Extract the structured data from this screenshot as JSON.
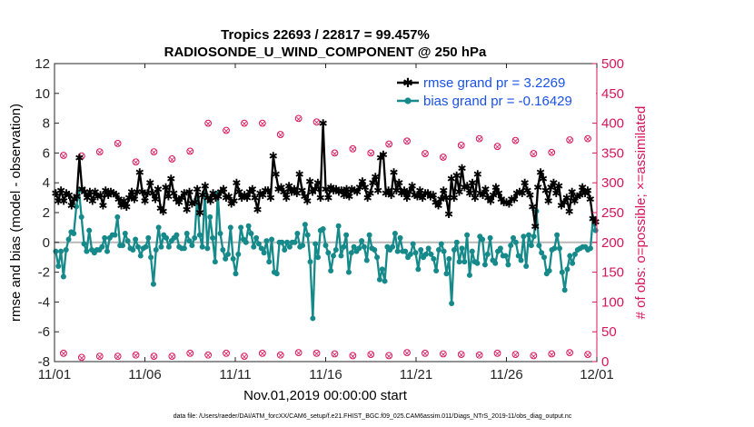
{
  "chart_data": {
    "type": "line",
    "title": "Tropics 22693 / 22817 = 99.457%",
    "subtitle": "RADIOSONDE_U_WIND_COMPONENT @ 250 hPa",
    "xlabel": "Nov.01,2019 00:00:00 start",
    "ylabel_left": "rmse and bias (model - observation)",
    "ylabel_right": "# of obs: o=possible; ×=assimilated",
    "footnote": "data file: /Users/raeder/DAI/ATM_forcXX/CAM6_setup/f.e21.FHIST_BGC.f09_025.CAM6assim.011/Diags_NTrS_2019-11/obs_diag_output.nc",
    "x_tick_labels": [
      "11/01",
      "11/06",
      "11/11",
      "11/16",
      "11/21",
      "11/26",
      "12/01"
    ],
    "x_tick_positions_days": [
      0,
      5,
      10,
      15,
      20,
      25,
      30
    ],
    "xlim_days": [
      0,
      30
    ],
    "ylim_left": [
      -8,
      12
    ],
    "y_ticks_left": [
      "-8",
      "-6",
      "-4",
      "-2",
      "0",
      "2",
      "4",
      "6",
      "8",
      "10",
      "12"
    ],
    "ylim_right": [
      0,
      500
    ],
    "y_ticks_right": [
      "0",
      "50",
      "100",
      "150",
      "200",
      "250",
      "300",
      "350",
      "400",
      "450",
      "500"
    ],
    "colors": {
      "rmse": "#000000",
      "bias": "#168a8a",
      "obs": "#d8155a",
      "zero_line": "#b8b8b8",
      "legend_text": "#1a52e6"
    },
    "legend": [
      {
        "label": "rmse grand pr = 3.2269",
        "series": "rmse"
      },
      {
        "label": "bias grand pr = -0.16429",
        "series": "bias"
      }
    ],
    "series": [
      {
        "name": "rmse",
        "values": [
          3.3,
          2.8,
          3.5,
          2.8,
          3.3,
          3.2,
          2.5,
          2.9,
          3.1,
          5.7,
          3.6,
          3.4,
          3.0,
          3.4,
          2.8,
          3.4,
          3.1,
          3.2,
          2.5,
          3.5,
          3.2,
          3.4,
          3.3,
          3.2,
          2.9,
          2.5,
          2.8,
          2.4,
          3.0,
          3.4,
          2.9,
          3.4,
          4.7,
          3.4,
          2.8,
          3.3,
          4.0,
          3.3,
          2.9,
          3.6,
          2.3,
          2.1,
          3.7,
          3.1,
          4.3,
          3.3,
          2.9,
          2.7,
          3.0,
          3.3,
          2.2,
          3.4,
          2.6,
          2.7,
          3.6,
          2.0,
          3.2,
          3.8,
          3.0,
          2.8,
          3.3,
          3.0,
          3.1,
          3.4,
          3.6,
          3.0,
          3.1,
          2.6,
          2.8,
          4.0,
          3.4,
          3.0,
          3.2,
          3.0,
          3.4,
          3.6,
          3.0,
          2.2,
          3.3,
          3.2,
          3.5,
          3.5,
          3.0,
          5.8,
          4.6,
          3.6,
          3.7,
          3.4,
          3.0,
          3.8,
          3.4,
          3.6,
          3.3,
          4.6,
          3.5,
          3.1,
          2.8,
          4.1,
          3.4,
          3.6,
          4.0,
          3.0,
          8.0,
          3.6,
          3.0,
          3.7,
          3.5,
          3.6,
          3.4,
          3.5,
          3.2,
          3.6,
          3.1,
          3.6,
          3.5,
          3.4,
          3.7,
          4.1,
          3.7,
          3.0,
          3.3,
          4.0,
          4.4,
          3.5,
          5.7,
          5.9,
          3.3,
          3.5,
          3.2,
          4.7,
          3.5,
          4.0,
          3.3,
          3.5,
          3.0,
          3.4,
          3.8,
          3.2,
          3.1,
          3.5,
          3.0,
          3.3,
          3.3,
          3.1,
          3.2,
          2.7,
          2.5,
          2.9,
          3.5,
          3.0,
          1.9,
          4.3,
          3.0,
          4.5,
          3.4,
          5.0,
          3.7,
          3.8,
          3.3,
          4.0,
          3.0,
          4.6,
          3.3,
          3.2,
          3.6,
          3.0,
          2.8,
          3.2,
          3.7,
          3.3,
          2.9,
          2.7,
          2.7,
          2.6,
          2.9,
          2.9,
          3.3,
          3.4,
          3.3,
          4.0,
          3.5,
          3.2,
          2.4,
          1.1,
          3.7,
          4.7,
          4.3,
          3.5,
          2.8,
          3.7,
          4.0,
          3.3,
          3.8,
          2.5,
          2.7,
          3.0,
          2.1,
          3.4,
          2.8,
          3.1,
          3.2,
          3.7,
          3.3,
          3.5,
          2.9,
          1.6,
          1.4
        ]
      },
      {
        "name": "bias",
        "values": [
          -0.6,
          -1.6,
          -0.6,
          -2.3,
          -0.5,
          0.2,
          0.7,
          0.6,
          2.4,
          3.5,
          1.7,
          -0.1,
          -0.6,
          0.8,
          -0.5,
          -0.7,
          -0.5,
          -0.5,
          -0.3,
          0.3,
          -0.6,
          0.3,
          0.5,
          0.5,
          1.7,
          -0.2,
          -0.2,
          0.6,
          0.1,
          -0.4,
          -0.5,
          0.2,
          -0.3,
          -0.9,
          -0.4,
          -0.3,
          0.3,
          -1.0,
          -2.8,
          -0.5,
          1.0,
          -0.3,
          0.5,
          0.3,
          -0.3,
          0.1,
          0.3,
          0.5,
          -0.3,
          -0.4,
          -0.4,
          0.6,
          0.1,
          -0.2,
          0.3,
          3.0,
          0.5,
          -0.3,
          3.3,
          -0.4,
          1.7,
          0.3,
          -1.3,
          3.3,
          0.6,
          -0.5,
          -1.1,
          -0.8,
          1.0,
          -1.1,
          -2.1,
          -0.8,
          1.0,
          0.2,
          0.0,
          1.1,
          0.6,
          -0.3,
          0.3,
          -0.1,
          -0.4,
          -0.7,
          0.1,
          -1.3,
          0.2,
          -2.0,
          -2.1,
          0.0,
          0.0,
          -0.5,
          0.0,
          -0.3,
          0.0,
          0.0,
          0.6,
          -0.3,
          -0.2,
          1.2,
          0.5,
          -1.3,
          -5.1,
          -0.1,
          -1.0,
          0.8,
          0.9,
          -0.2,
          -0.7,
          -1.9,
          -0.9,
          -0.5,
          1.1,
          -0.9,
          -0.3,
          0.5,
          -2.0,
          -0.7,
          -0.3,
          -0.6,
          -0.4,
          0.1,
          -0.3,
          -1.2,
          0.5,
          -0.4,
          -0.5,
          -1.0,
          -2.5,
          -1.8,
          -2.6,
          -0.3,
          -0.5,
          -0.3,
          0.6,
          -0.6,
          0.3,
          -0.6,
          -0.6,
          -1.0,
          -0.8,
          -0.1,
          -0.7,
          -1.8,
          -0.5,
          -1.0,
          -0.8,
          -0.4,
          -0.8,
          -1.1,
          -1.9,
          -0.5,
          -0.1,
          -0.6,
          -2.1,
          -1.1,
          -4.1,
          -0.5,
          0.0,
          -1.3,
          -0.4,
          -1.3,
          0.5,
          -2.2,
          -0.6,
          -1.3,
          -1.4,
          0.4,
          0.2,
          -1.5,
          -0.8,
          0.3,
          -1.2,
          -1.4,
          -0.6,
          -0.4,
          -0.9,
          -0.9,
          -1.5,
          -0.2,
          0.3,
          0.0,
          -0.9,
          -1.2,
          0.4,
          -1.6,
          0.5,
          -0.2,
          0.4,
          2.1,
          -0.2,
          -0.7,
          -1.0,
          -2.1,
          -1.9,
          -0.5,
          -0.4,
          0.5,
          -0.4,
          -2.0,
          -3.2,
          -1.8,
          -0.9,
          -1.4,
          -0.8,
          -0.5,
          -0.4,
          -0.3,
          -0.3,
          -0.5,
          -0.4,
          1.6,
          0.8
        ]
      },
      {
        "name": "obs_possible",
        "values": [
          [
            0,
            346
          ],
          [
            1,
            345
          ],
          [
            2,
            352
          ],
          [
            3,
            366
          ],
          [
            4,
            335
          ],
          [
            5,
            352
          ],
          [
            6,
            340
          ],
          [
            7,
            353
          ],
          [
            8,
            400
          ],
          [
            9,
            388
          ],
          [
            10,
            400
          ],
          [
            11,
            400
          ],
          [
            12,
            381
          ],
          [
            13,
            408
          ],
          [
            14,
            402
          ],
          [
            15,
            350
          ],
          [
            16,
            357
          ],
          [
            17,
            350
          ],
          [
            18,
            365
          ],
          [
            19,
            370
          ],
          [
            20,
            349
          ],
          [
            21,
            343
          ],
          [
            22,
            363
          ],
          [
            23,
            374
          ],
          [
            24,
            361
          ],
          [
            25,
            371
          ],
          [
            26,
            349
          ],
          [
            27,
            351
          ],
          [
            28,
            372
          ],
          [
            29,
            374
          ]
        ]
      },
      {
        "name": "obs_assimilated_low",
        "values": [
          [
            0,
            14
          ],
          [
            1,
            7
          ],
          [
            2,
            9
          ],
          [
            3,
            9
          ],
          [
            4,
            11
          ],
          [
            5,
            9
          ],
          [
            6,
            9
          ],
          [
            7,
            14
          ],
          [
            8,
            11
          ],
          [
            9,
            14
          ],
          [
            10,
            9
          ],
          [
            11,
            14
          ],
          [
            12,
            11
          ],
          [
            13,
            15
          ],
          [
            14,
            14
          ],
          [
            15,
            13
          ],
          [
            16,
            10
          ],
          [
            17,
            12
          ],
          [
            18,
            10
          ],
          [
            19,
            15
          ],
          [
            20,
            14
          ],
          [
            21,
            13
          ],
          [
            22,
            12
          ],
          [
            23,
            11
          ],
          [
            24,
            14
          ],
          [
            25,
            12
          ],
          [
            26,
            10
          ],
          [
            27,
            13
          ],
          [
            28,
            15
          ],
          [
            29,
            12
          ]
        ]
      }
    ]
  }
}
